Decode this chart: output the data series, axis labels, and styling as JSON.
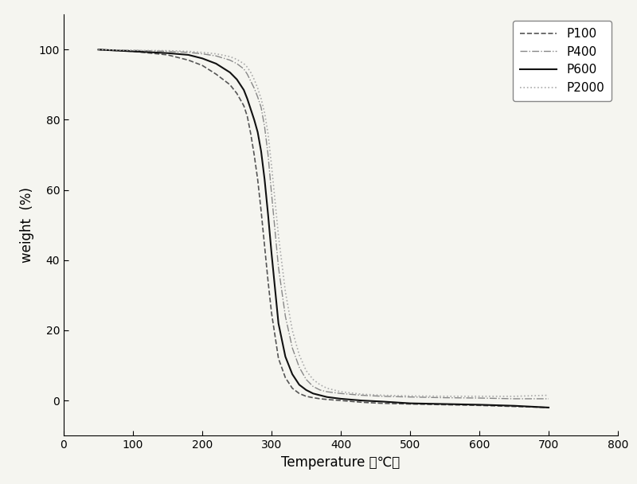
{
  "title": "",
  "xlabel": "Temperature （℃）",
  "ylabel": "weight  (%)",
  "xlim": [
    0,
    800
  ],
  "ylim": [
    -10,
    110
  ],
  "xticks": [
    0,
    100,
    200,
    300,
    400,
    500,
    600,
    700,
    800
  ],
  "yticks": [
    0,
    20,
    40,
    60,
    80,
    100
  ],
  "series": {
    "P100": {
      "color": "#555555",
      "linestyle": "--",
      "linewidth": 1.2,
      "x": [
        50,
        100,
        150,
        180,
        200,
        220,
        240,
        250,
        260,
        265,
        270,
        275,
        280,
        285,
        290,
        295,
        300,
        310,
        320,
        330,
        340,
        350,
        360,
        370,
        380,
        400,
        430,
        460,
        500,
        550,
        600,
        650,
        700
      ],
      "y": [
        100,
        99.5,
        98.5,
        97.0,
        95.5,
        93.0,
        90.0,
        87.5,
        84.0,
        81.0,
        76.0,
        70.0,
        63.0,
        54.0,
        44.0,
        34.0,
        25.0,
        12.0,
        6.5,
        3.5,
        2.0,
        1.2,
        0.8,
        0.5,
        0.3,
        0.0,
        -0.5,
        -0.8,
        -1.0,
        -1.2,
        -1.4,
        -1.7,
        -2.0
      ]
    },
    "P400": {
      "color": "#888888",
      "linestyle": "-.",
      "linewidth": 1.0,
      "x": [
        50,
        100,
        150,
        180,
        200,
        220,
        240,
        250,
        260,
        265,
        270,
        275,
        280,
        285,
        290,
        295,
        300,
        310,
        320,
        330,
        340,
        350,
        360,
        370,
        380,
        400,
        430,
        460,
        500,
        550,
        600,
        650,
        700
      ],
      "y": [
        100,
        99.8,
        99.5,
        99.2,
        98.8,
        98.2,
        97.0,
        96.0,
        94.5,
        93.0,
        91.0,
        89.0,
        86.5,
        83.5,
        78.0,
        70.0,
        59.0,
        38.0,
        24.0,
        15.0,
        9.5,
        6.0,
        4.0,
        3.0,
        2.5,
        2.0,
        1.5,
        1.2,
        1.0,
        0.8,
        0.7,
        0.5,
        0.5
      ]
    },
    "P600": {
      "color": "#111111",
      "linestyle": "-",
      "linewidth": 1.5,
      "x": [
        50,
        100,
        150,
        180,
        200,
        220,
        240,
        250,
        260,
        265,
        270,
        275,
        280,
        285,
        290,
        295,
        300,
        310,
        320,
        330,
        340,
        350,
        360,
        370,
        380,
        400,
        430,
        460,
        500,
        550,
        600,
        650,
        700
      ],
      "y": [
        100,
        99.5,
        99.0,
        98.5,
        97.5,
        96.0,
        93.5,
        91.5,
        88.5,
        86.0,
        83.0,
        80.0,
        76.5,
        71.0,
        63.0,
        53.0,
        42.0,
        22.0,
        12.5,
        7.5,
        4.5,
        3.0,
        2.0,
        1.5,
        1.0,
        0.5,
        0.0,
        -0.3,
        -0.8,
        -1.0,
        -1.2,
        -1.5,
        -2.0
      ]
    },
    "P2000": {
      "color": "#aaaaaa",
      "linestyle": ":",
      "linewidth": 1.2,
      "x": [
        50,
        100,
        150,
        180,
        200,
        220,
        240,
        250,
        260,
        265,
        270,
        275,
        280,
        285,
        290,
        295,
        300,
        310,
        320,
        330,
        340,
        350,
        360,
        370,
        380,
        400,
        430,
        460,
        500,
        550,
        600,
        650,
        700
      ],
      "y": [
        100,
        99.8,
        99.7,
        99.5,
        99.2,
        98.8,
        98.0,
        97.2,
        96.0,
        95.0,
        93.5,
        91.5,
        89.0,
        86.0,
        82.0,
        76.0,
        67.0,
        47.0,
        31.0,
        20.0,
        13.0,
        8.5,
        6.0,
        4.5,
        3.5,
        2.5,
        1.8,
        1.5,
        1.3,
        1.2,
        1.2,
        1.2,
        1.5
      ]
    }
  },
  "legend_loc": "upper right",
  "background_color": "#f5f5f0",
  "figure_size": [
    8.0,
    6.08
  ],
  "dpi": 100
}
